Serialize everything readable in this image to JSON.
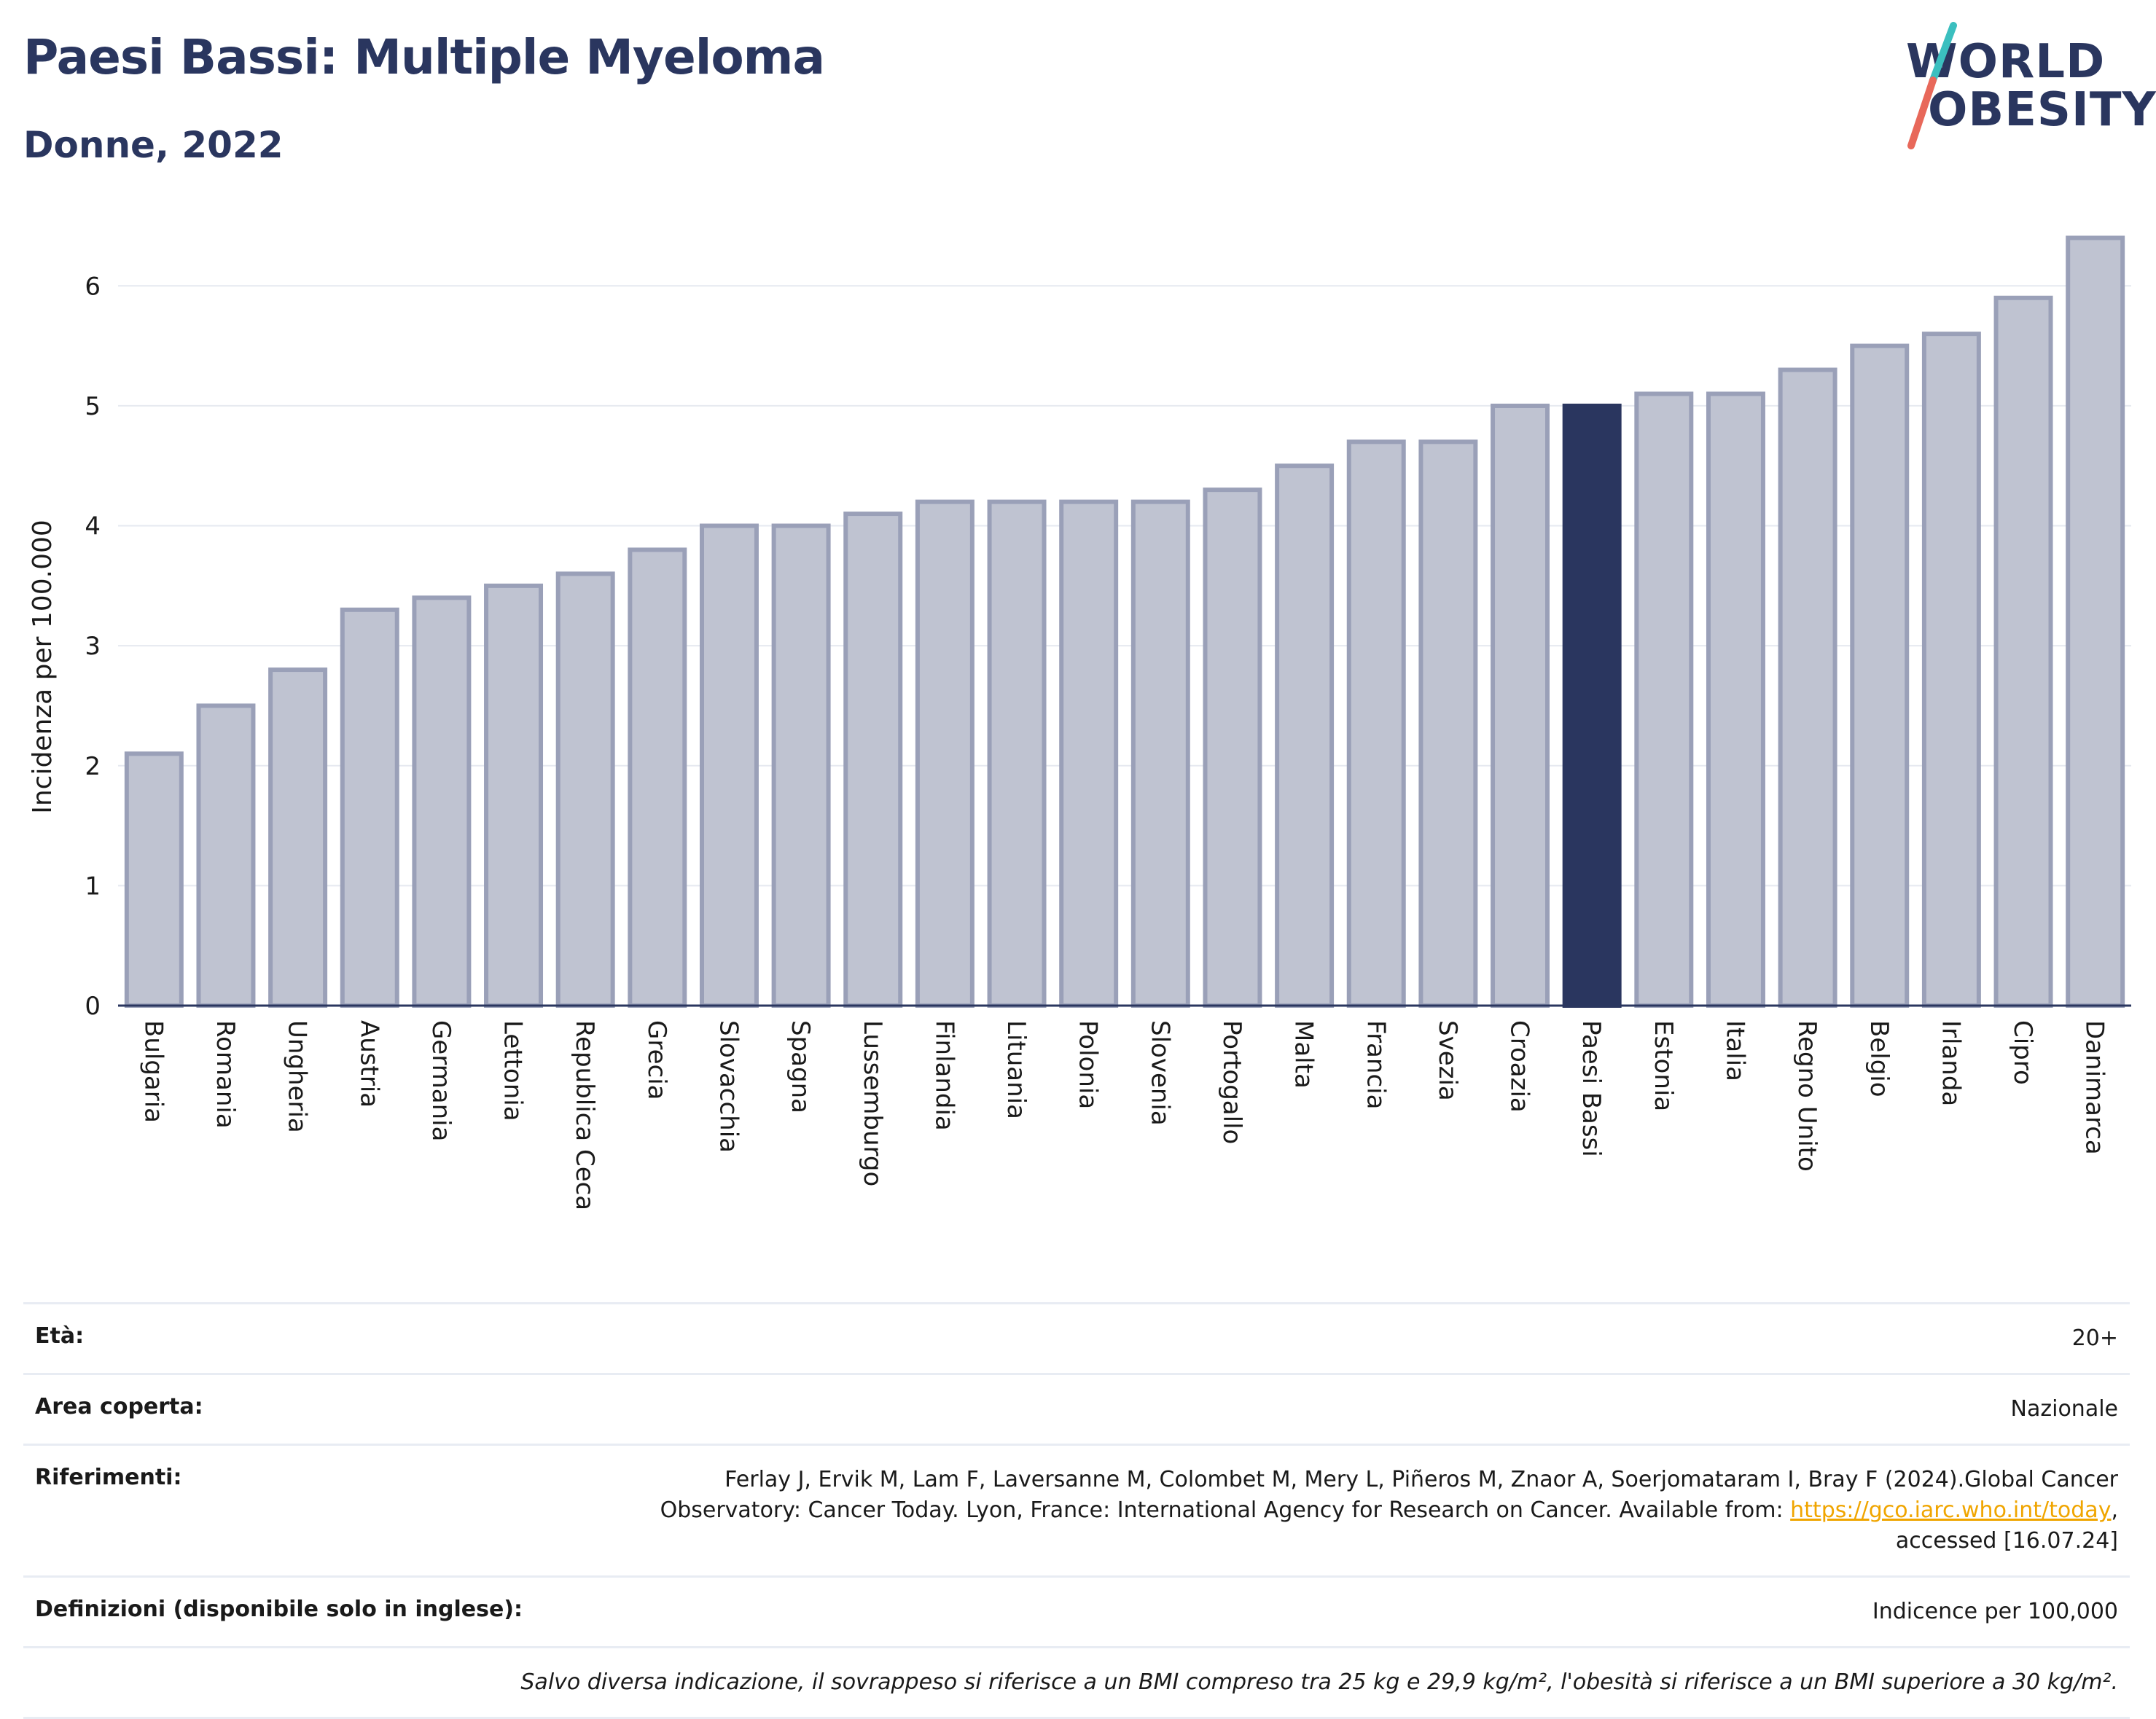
{
  "header": {
    "title": "Paesi Bassi: Multiple Myeloma",
    "subtitle": "Donne, 2022"
  },
  "logo": {
    "line1": "WORLD",
    "line2": "OBESITY",
    "slash_colors": [
      "#3bbfbf",
      "#e8685a"
    ]
  },
  "colors": {
    "bar": "#bfc3d1",
    "bar_border": "#9aa0b8",
    "highlight": "#2a365f",
    "grid": "#e6e9f0",
    "axis": "#2a365f"
  },
  "chart_data": {
    "type": "bar",
    "title": "Paesi Bassi: Multiple Myeloma",
    "subtitle": "Donne, 2022",
    "xlabel": "",
    "ylabel": "Incidenza per 100.000",
    "ylim": [
      0,
      6.5
    ],
    "yticks": [
      0,
      1,
      2,
      3,
      4,
      5,
      6
    ],
    "grid": true,
    "highlight": "Paesi Bassi",
    "categories": [
      "Bulgaria",
      "Romania",
      "Ungheria",
      "Austria",
      "Germania",
      "Lettonia",
      "Republica Ceca",
      "Grecia",
      "Slovacchia",
      "Spagna",
      "Lussemburgo",
      "Finlandia",
      "Lituania",
      "Polonia",
      "Slovenia",
      "Portogallo",
      "Malta",
      "Francia",
      "Svezia",
      "Croazia",
      "Paesi Bassi",
      "Estonia",
      "Italia",
      "Regno Unito",
      "Belgio",
      "Irlanda",
      "Cipro",
      "Danimarca"
    ],
    "values": [
      2.1,
      2.5,
      2.8,
      3.3,
      3.4,
      3.5,
      3.6,
      3.8,
      4.0,
      4.0,
      4.1,
      4.2,
      4.2,
      4.2,
      4.2,
      4.3,
      4.5,
      4.7,
      4.7,
      5.0,
      5.0,
      5.1,
      5.1,
      5.3,
      5.5,
      5.6,
      5.9,
      6.4
    ]
  },
  "info": {
    "age_label": "Età:",
    "age_value": "20+",
    "area_label": "Area coperta:",
    "area_value": "Nazionale",
    "ref_label": "Riferimenti:",
    "ref_line1": "Ferlay J, Ervik M, Lam F, Laversanne M, Colombet M, Mery L, Piñeros M, Znaor A, Soerjomataram I, Bray F (2024).Global Cancer",
    "ref_line2": "Observatory: Cancer Today. Lyon, France: International Agency for Research on Cancer. Available from: ",
    "ref_link": "https://gco.iarc.who.int/today",
    "ref_line2_end": ",",
    "ref_line3": "accessed [16.07.24]",
    "def_label": "Definizioni (disponibile solo in inglese):",
    "def_value": "Indicence per 100,000",
    "note": "Salvo diversa indicazione, il sovrappeso si riferisce a un BMI compreso tra 25 kg e 29,9 kg/m², l'obesità si riferisce a un BMI superiore a 30 kg/m²."
  }
}
